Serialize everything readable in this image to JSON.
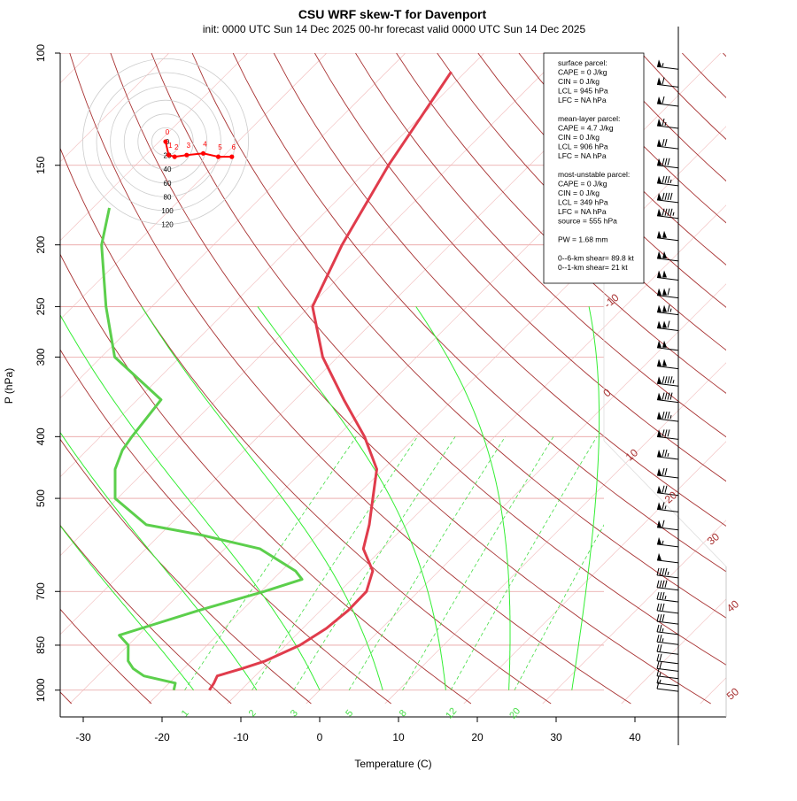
{
  "title": "CSU WRF skew-T for Davenport",
  "subtitle": "init: 0000 UTC Sun 14 Dec 2025    00-hr forecast valid 0000 UTC Sun 14 Dec 2025",
  "chart_data": {
    "type": "line",
    "xlabel": "Temperature (C)",
    "ylabel": "P (hPa)",
    "pressure_ticks": [
      "100",
      "150",
      "200",
      "250",
      "300",
      "400",
      "500",
      "700",
      "850",
      "1000"
    ],
    "temperature_ticks": [
      "-30",
      "-20",
      "-10",
      "0",
      "10",
      "20",
      "30",
      "40"
    ],
    "isotherm_labels": [
      "-10",
      "0",
      "10",
      "20",
      "30",
      "40",
      "50"
    ],
    "mixing_ratio_labels": [
      "1",
      "2",
      "3",
      "5",
      "8",
      "12",
      "20"
    ],
    "series": [
      {
        "name": "",
        "color": "#e03c4c",
        "points": [
          {
            "p": 1000,
            "t": -14.0
          },
          {
            "p": 975,
            "t": -14.3
          },
          {
            "p": 950,
            "t": -14.8
          },
          {
            "p": 925,
            "t": -12.6
          },
          {
            "p": 900,
            "t": -10.6
          },
          {
            "p": 850,
            "t": -8.2
          },
          {
            "p": 800,
            "t": -7.0
          },
          {
            "p": 750,
            "t": -6.5
          },
          {
            "p": 700,
            "t": -6.6
          },
          {
            "p": 650,
            "t": -8.4
          },
          {
            "p": 600,
            "t": -12.4
          },
          {
            "p": 550,
            "t": -14.7
          },
          {
            "p": 500,
            "t": -17.6
          },
          {
            "p": 450,
            "t": -20.8
          },
          {
            "p": 400,
            "t": -26.5
          },
          {
            "p": 350,
            "t": -33.8
          },
          {
            "p": 300,
            "t": -41.9
          },
          {
            "p": 250,
            "t": -49.6
          },
          {
            "p": 200,
            "t": -53.7
          },
          {
            "p": 150,
            "t": -57.9
          },
          {
            "p": 125,
            "t": -60.0
          },
          {
            "p": 107,
            "t": -61.8
          }
        ]
      },
      {
        "name": "",
        "color": "#5ccf4c",
        "points": [
          {
            "p": 1000,
            "t": -18.5
          },
          {
            "p": 975,
            "t": -19.2
          },
          {
            "p": 950,
            "t": -24.1
          },
          {
            "p": 925,
            "t": -26.4
          },
          {
            "p": 900,
            "t": -28.0
          },
          {
            "p": 850,
            "t": -30.0
          },
          {
            "p": 820,
            "t": -32.4
          },
          {
            "p": 800,
            "t": -30.5
          },
          {
            "p": 750,
            "t": -25.5
          },
          {
            "p": 700,
            "t": -19.6
          },
          {
            "p": 670,
            "t": -16.3
          },
          {
            "p": 650,
            "t": -18.2
          },
          {
            "p": 600,
            "t": -25.5
          },
          {
            "p": 570,
            "t": -35.0
          },
          {
            "p": 550,
            "t": -43.0
          },
          {
            "p": 500,
            "t": -50.3
          },
          {
            "p": 450,
            "t": -54.0
          },
          {
            "p": 420,
            "t": -55.5
          },
          {
            "p": 400,
            "t": -56.0
          },
          {
            "p": 350,
            "t": -57.0
          },
          {
            "p": 300,
            "t": -68.3
          },
          {
            "p": 250,
            "t": -75.8
          },
          {
            "p": 200,
            "t": -84.2
          },
          {
            "p": 175,
            "t": -87.9
          }
        ]
      }
    ],
    "wind_barbs": [
      {
        "p": 105,
        "kt": 55
      },
      {
        "p": 112,
        "kt": 60
      },
      {
        "p": 120,
        "kt": 60
      },
      {
        "p": 130,
        "kt": 65
      },
      {
        "p": 140,
        "kt": 70
      },
      {
        "p": 150,
        "kt": 80
      },
      {
        "p": 160,
        "kt": 85
      },
      {
        "p": 170,
        "kt": 90
      },
      {
        "p": 180,
        "kt": 95
      },
      {
        "p": 195,
        "kt": 100
      },
      {
        "p": 210,
        "kt": 100
      },
      {
        "p": 225,
        "kt": 100
      },
      {
        "p": 240,
        "kt": 110
      },
      {
        "p": 255,
        "kt": 115
      },
      {
        "p": 270,
        "kt": 110
      },
      {
        "p": 290,
        "kt": 100
      },
      {
        "p": 310,
        "kt": 100
      },
      {
        "p": 330,
        "kt": 95
      },
      {
        "p": 350,
        "kt": 90
      },
      {
        "p": 375,
        "kt": 85
      },
      {
        "p": 400,
        "kt": 80
      },
      {
        "p": 430,
        "kt": 75
      },
      {
        "p": 460,
        "kt": 70
      },
      {
        "p": 490,
        "kt": 70
      },
      {
        "p": 520,
        "kt": 65
      },
      {
        "p": 555,
        "kt": 60
      },
      {
        "p": 590,
        "kt": 55
      },
      {
        "p": 625,
        "kt": 50
      },
      {
        "p": 660,
        "kt": 45
      },
      {
        "p": 690,
        "kt": 40
      },
      {
        "p": 720,
        "kt": 35
      },
      {
        "p": 750,
        "kt": 30
      },
      {
        "p": 780,
        "kt": 30
      },
      {
        "p": 810,
        "kt": 25
      },
      {
        "p": 840,
        "kt": 25
      },
      {
        "p": 870,
        "kt": 20
      },
      {
        "p": 900,
        "kt": 20
      },
      {
        "p": 925,
        "kt": 20
      },
      {
        "p": 950,
        "kt": 15
      },
      {
        "p": 975,
        "kt": 15
      },
      {
        "p": 995,
        "kt": 10
      }
    ],
    "hodograph": {
      "ring_labels": [
        "0",
        "20",
        "40",
        "60",
        "80",
        "100",
        "120"
      ],
      "points": [
        {
          "label": "0",
          "u": 0,
          "v": 0
        },
        {
          "label": "1",
          "u": 2,
          "v": -8
        },
        {
          "label": "2",
          "u": 6,
          "v": -9
        },
        {
          "label": "3",
          "u": 14,
          "v": -8
        },
        {
          "label": "4",
          "u": 25,
          "v": -7
        },
        {
          "label": "5",
          "u": 35,
          "v": -9
        },
        {
          "label": "6",
          "u": 44,
          "v": -9
        }
      ]
    }
  },
  "parcel_info": {
    "lines": [
      "surface parcel:",
      "CAPE = 0 J/kg",
      "CIN = 0 J/kg",
      "LCL = 945 hPa",
      "LFC = NA hPa",
      "",
      "mean-layer parcel:",
      "CAPE = 4.7 J/kg",
      "CIN = 0 J/kg",
      "LCL = 906 hPa",
      "LFC = NA hPa",
      "",
      "most-unstable parcel:",
      "CAPE = 0 J/kg",
      "CIN = 0 J/kg",
      "LCL = 349 hPa",
      "LFC = NA hPa",
      "source = 555 hPa",
      "",
      "PW =  1.68 mm",
      "",
      "0--6-km shear= 89.8 kt",
      "0--1-km shear= 21 kt"
    ]
  }
}
